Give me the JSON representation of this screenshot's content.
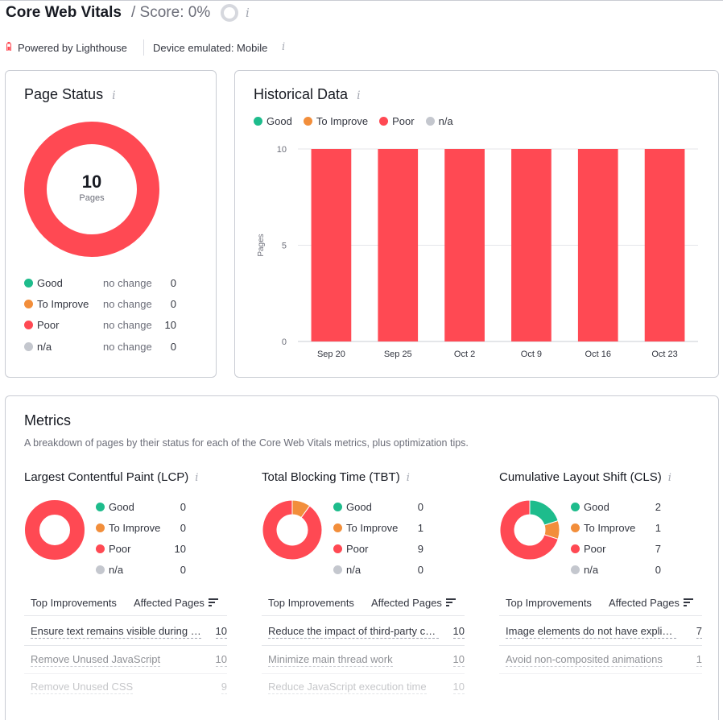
{
  "header": {
    "title": "Core Web Vitals",
    "score": "/ Score: 0%",
    "info_glyph": "i"
  },
  "subheader": {
    "powered_by": "Powered by Lighthouse",
    "device": "Device emulated: Mobile",
    "battery_icon_color": "#ff4953"
  },
  "colors": {
    "good": "#1ebc8c",
    "to_improve": "#f28e3b",
    "poor": "#ff4953",
    "na": "#c4c7ce"
  },
  "page_status": {
    "title": "Page Status",
    "total": "10",
    "total_label": "Pages",
    "rows": [
      {
        "label": "Good",
        "change": "no change",
        "value": "0",
        "color": "#1ebc8c"
      },
      {
        "label": "To Improve",
        "change": "no change",
        "value": "0",
        "color": "#f28e3b"
      },
      {
        "label": "Poor",
        "change": "no change",
        "value": "10",
        "color": "#ff4953"
      },
      {
        "label": "n/a",
        "change": "no change",
        "value": "0",
        "color": "#c4c7ce"
      }
    ]
  },
  "historical": {
    "title": "Historical Data",
    "legend": [
      {
        "label": "Good",
        "color": "#1ebc8c"
      },
      {
        "label": "To Improve",
        "color": "#f28e3b"
      },
      {
        "label": "Poor",
        "color": "#ff4953"
      },
      {
        "label": "n/a",
        "color": "#c4c7ce"
      }
    ]
  },
  "chart_data": {
    "type": "bar",
    "categories": [
      "Sep 20",
      "Sep 25",
      "Oct 2",
      "Oct 9",
      "Oct 16",
      "Oct 23"
    ],
    "series": [
      {
        "name": "Good",
        "values": [
          0,
          0,
          0,
          0,
          0,
          0
        ],
        "color": "#1ebc8c"
      },
      {
        "name": "To Improve",
        "values": [
          0,
          0,
          0,
          0,
          0,
          0
        ],
        "color": "#f28e3b"
      },
      {
        "name": "Poor",
        "values": [
          10,
          10,
          10,
          10,
          10,
          10
        ],
        "color": "#ff4953"
      },
      {
        "name": "n/a",
        "values": [
          0,
          0,
          0,
          0,
          0,
          0
        ],
        "color": "#c4c7ce"
      }
    ],
    "stacked": true,
    "ylabel": "Pages",
    "yticks": [
      0,
      5,
      10
    ],
    "ylim": [
      0,
      10
    ],
    "grid": true,
    "legend_position": "top-left"
  },
  "metrics": {
    "title": "Metrics",
    "description": "A breakdown of pages by their status for each of the Core Web Vitals metrics, plus optimization tips.",
    "table_head": {
      "improvements": "Top Improvements",
      "affected": "Affected Pages"
    },
    "items": [
      {
        "title": "Largest Contentful Paint (LCP)",
        "counts": [
          {
            "label": "Good",
            "value": "0",
            "color": "#1ebc8c"
          },
          {
            "label": "To Improve",
            "value": "0",
            "color": "#f28e3b"
          },
          {
            "label": "Poor",
            "value": "10",
            "color": "#ff4953"
          },
          {
            "label": "n/a",
            "value": "0",
            "color": "#c4c7ce"
          }
        ],
        "donut": [
          0,
          0,
          10
        ],
        "improvements": [
          {
            "text": "Ensure text remains visible during webfont load",
            "pages": "10"
          },
          {
            "text": "Remove Unused JavaScript",
            "pages": "10"
          },
          {
            "text": "Remove Unused CSS",
            "pages": "9"
          }
        ]
      },
      {
        "title": "Total Blocking Time (TBT)",
        "counts": [
          {
            "label": "Good",
            "value": "0",
            "color": "#1ebc8c"
          },
          {
            "label": "To Improve",
            "value": "1",
            "color": "#f28e3b"
          },
          {
            "label": "Poor",
            "value": "9",
            "color": "#ff4953"
          },
          {
            "label": "n/a",
            "value": "0",
            "color": "#c4c7ce"
          }
        ],
        "donut": [
          0,
          1,
          9
        ],
        "improvements": [
          {
            "text": "Reduce the impact of third-party code",
            "pages": "10"
          },
          {
            "text": "Minimize main thread work",
            "pages": "10"
          },
          {
            "text": "Reduce JavaScript execution time",
            "pages": "10"
          }
        ]
      },
      {
        "title": "Cumulative Layout Shift (CLS)",
        "counts": [
          {
            "label": "Good",
            "value": "2",
            "color": "#1ebc8c"
          },
          {
            "label": "To Improve",
            "value": "1",
            "color": "#f28e3b"
          },
          {
            "label": "Poor",
            "value": "7",
            "color": "#ff4953"
          },
          {
            "label": "n/a",
            "value": "0",
            "color": "#c4c7ce"
          }
        ],
        "donut": [
          2,
          1,
          7
        ],
        "improvements": [
          {
            "text": "Image elements do not have explicit width and height",
            "pages": "7"
          },
          {
            "text": "Avoid non-composited animations",
            "pages": "1"
          }
        ]
      }
    ]
  }
}
